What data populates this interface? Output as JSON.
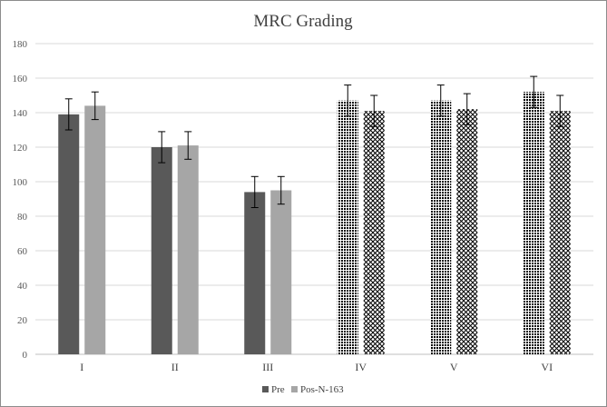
{
  "chart_data": {
    "type": "bar",
    "title": "MRC Grading",
    "xlabel": "",
    "ylabel": "",
    "ylim": [
      0,
      180
    ],
    "yticks": [
      0,
      20,
      40,
      60,
      80,
      100,
      120,
      140,
      160,
      180
    ],
    "grid": true,
    "legend": "bottom",
    "categories": [
      "I",
      "II",
      "III",
      "IV",
      "V",
      "VI"
    ],
    "series": [
      {
        "name": "Pre",
        "values": [
          139,
          120,
          94,
          147,
          147,
          152
        ],
        "errors": [
          9,
          9,
          9,
          9,
          9,
          9
        ],
        "color": "#595959"
      },
      {
        "name": "Pos-N-163",
        "values": [
          144,
          121,
          95,
          141,
          142,
          141
        ],
        "errors": [
          8,
          8,
          8,
          9,
          9,
          9
        ],
        "color": "#a6a6a6"
      }
    ],
    "patterned_categories": [
      "IV",
      "V",
      "VI"
    ]
  },
  "colors": {
    "pre": "#595959",
    "post": "#a6a6a6",
    "grid": "#d9d9d9",
    "pattern_dark": "#000000"
  }
}
